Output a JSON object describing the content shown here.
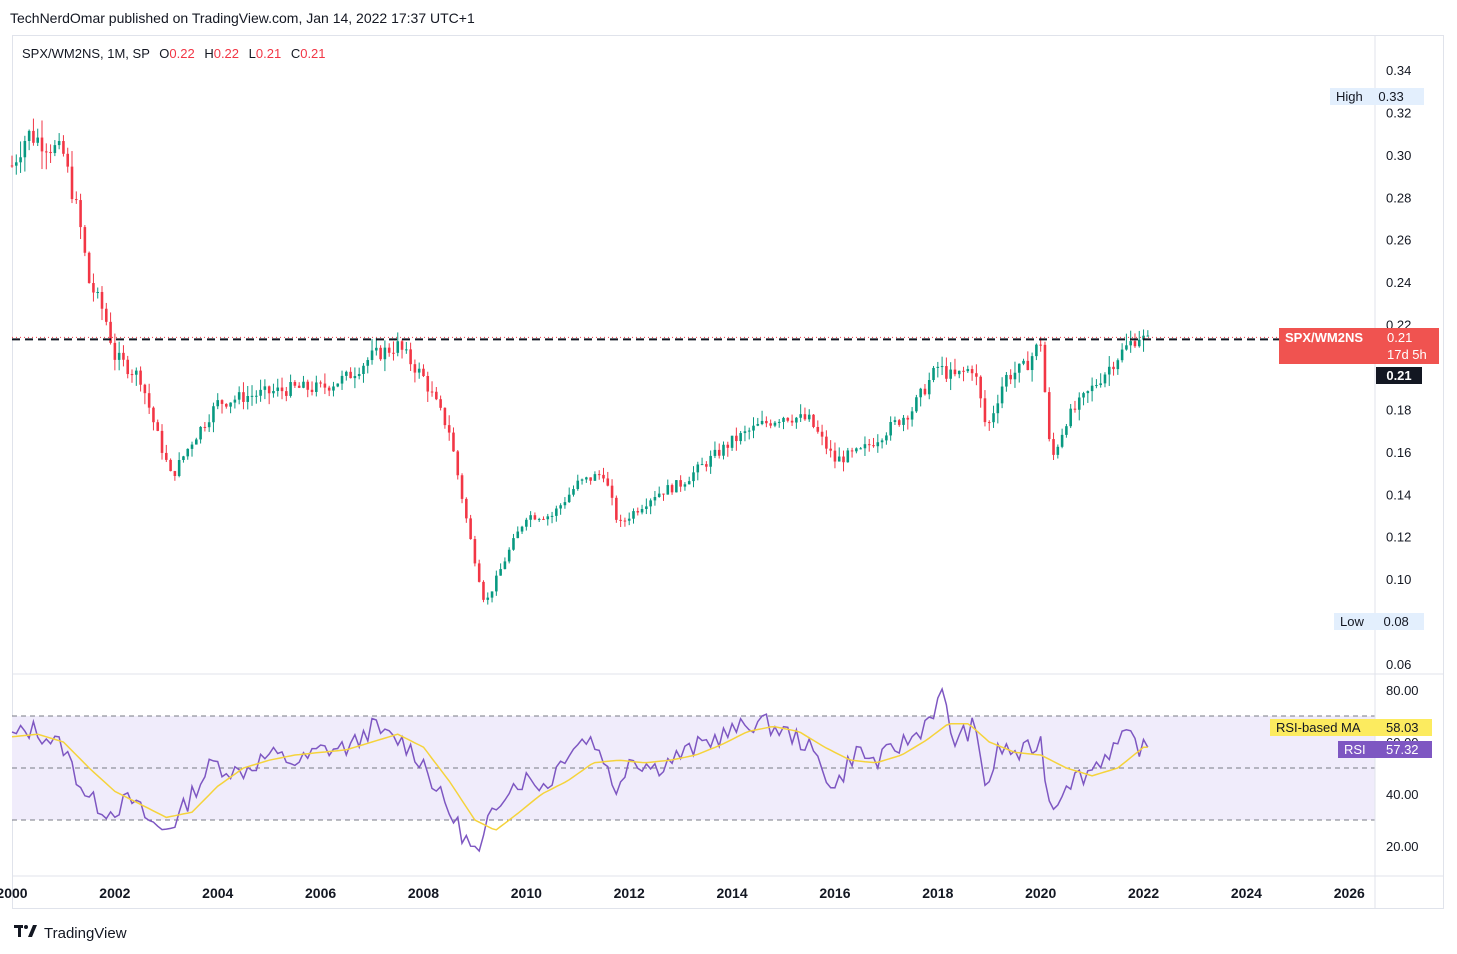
{
  "header": {
    "published_text": "TechNerdOmar published on TradingView.com, Jan 14, 2022 17:37 UTC+1"
  },
  "legend": {
    "symbol": "SPX/WM2NS, 1M, SP",
    "o_label": "O",
    "o_value": "0.22",
    "h_label": "H",
    "h_value": "0.22",
    "l_label": "L",
    "l_value": "0.21",
    "c_label": "C",
    "c_value": "0.21"
  },
  "tags": {
    "high_label": "High",
    "high_value": "0.33",
    "low_label": "Low",
    "low_value": "0.08",
    "symbol_label": "SPX/WM2NS",
    "symbol_value": "0.21",
    "countdown": "17d 5h",
    "crosshair_value": "0.21",
    "rsi_ma_label": "RSI-based MA",
    "rsi_ma_value": "58.03",
    "rsi_label": "RSI",
    "rsi_value": "57.32"
  },
  "footer": {
    "brand": "TradingView"
  },
  "colors": {
    "up": "#089981",
    "down": "#f23645",
    "rsi": "#7e57c2",
    "rsi_ma": "#f5d33b",
    "band": "#f0ecfb",
    "tag_red": "#f05350"
  },
  "chart_data": [
    {
      "type": "candlestick",
      "series_name": "SPX/WM2NS",
      "interval": "1M",
      "x_ticks": [
        "2000",
        "2002",
        "2004",
        "2006",
        "2008",
        "2010",
        "2012",
        "2014",
        "2016",
        "2018",
        "2020",
        "2022",
        "2024",
        "2026"
      ],
      "y_ticks": [
        "0.06",
        "0.08",
        "0.10",
        "0.12",
        "0.14",
        "0.16",
        "0.18",
        "0.20",
        "0.22",
        "0.24",
        "0.26",
        "0.28",
        "0.30",
        "0.32",
        "0.34"
      ],
      "ylim": [
        0.06,
        0.34
      ],
      "xlim": [
        2000.0,
        2026.5
      ],
      "high": 0.33,
      "low": 0.08,
      "horizontal_line": 0.213,
      "anchors": [
        [
          2000.0,
          0.295
        ],
        [
          2000.3,
          0.31
        ],
        [
          2000.7,
          0.305
        ],
        [
          2001.0,
          0.3
        ],
        [
          2001.3,
          0.27
        ],
        [
          2001.5,
          0.24
        ],
        [
          2001.8,
          0.225
        ],
        [
          2002.0,
          0.205
        ],
        [
          2002.5,
          0.195
        ],
        [
          2002.8,
          0.17
        ],
        [
          2003.1,
          0.148
        ],
        [
          2003.5,
          0.165
        ],
        [
          2004.0,
          0.183
        ],
        [
          2004.5,
          0.186
        ],
        [
          2005.0,
          0.188
        ],
        [
          2005.5,
          0.19
        ],
        [
          2006.0,
          0.19
        ],
        [
          2006.5,
          0.195
        ],
        [
          2007.0,
          0.205
        ],
        [
          2007.5,
          0.21
        ],
        [
          2008.0,
          0.195
        ],
        [
          2008.5,
          0.17
        ],
        [
          2008.9,
          0.12
        ],
        [
          2009.2,
          0.088
        ],
        [
          2009.6,
          0.11
        ],
        [
          2010.0,
          0.13
        ],
        [
          2010.5,
          0.13
        ],
        [
          2011.0,
          0.145
        ],
        [
          2011.5,
          0.15
        ],
        [
          2011.8,
          0.125
        ],
        [
          2012.0,
          0.13
        ],
        [
          2012.5,
          0.14
        ],
        [
          2013.0,
          0.145
        ],
        [
          2013.5,
          0.155
        ],
        [
          2014.0,
          0.165
        ],
        [
          2014.5,
          0.172
        ],
        [
          2015.0,
          0.177
        ],
        [
          2015.5,
          0.175
        ],
        [
          2016.0,
          0.156
        ],
        [
          2016.5,
          0.16
        ],
        [
          2017.0,
          0.17
        ],
        [
          2017.5,
          0.18
        ],
        [
          2018.0,
          0.2
        ],
        [
          2018.3,
          0.195
        ],
        [
          2018.7,
          0.2
        ],
        [
          2018.95,
          0.17
        ],
        [
          2019.3,
          0.195
        ],
        [
          2019.7,
          0.2
        ],
        [
          2020.0,
          0.212
        ],
        [
          2020.2,
          0.155
        ],
        [
          2020.5,
          0.175
        ],
        [
          2021.0,
          0.19
        ],
        [
          2021.5,
          0.205
        ],
        [
          2021.9,
          0.215
        ],
        [
          2022.05,
          0.212
        ]
      ]
    },
    {
      "type": "line",
      "series": [
        {
          "name": "RSI"
        },
        {
          "name": "RSI-based MA"
        }
      ],
      "y_ticks": [
        "20.00",
        "40.00",
        "60.00",
        "80.00"
      ],
      "ylim": [
        10,
        85
      ],
      "bands": [
        30,
        50,
        70
      ],
      "rsi_anchors": [
        [
          2000.0,
          62
        ],
        [
          2000.4,
          65
        ],
        [
          2001.0,
          58
        ],
        [
          2001.3,
          45
        ],
        [
          2001.5,
          38
        ],
        [
          2001.9,
          33
        ],
        [
          2002.3,
          38
        ],
        [
          2002.7,
          29
        ],
        [
          2002.9,
          26
        ],
        [
          2003.2,
          30
        ],
        [
          2003.5,
          40
        ],
        [
          2003.9,
          52
        ],
        [
          2004.4,
          48
        ],
        [
          2005.0,
          55
        ],
        [
          2005.6,
          52
        ],
        [
          2006.0,
          57
        ],
        [
          2006.6,
          58
        ],
        [
          2007.0,
          66
        ],
        [
          2007.3,
          62
        ],
        [
          2007.6,
          60
        ],
        [
          2008.0,
          52
        ],
        [
          2008.3,
          40
        ],
        [
          2008.6,
          30
        ],
        [
          2008.9,
          20
        ],
        [
          2009.1,
          16
        ],
        [
          2009.3,
          32
        ],
        [
          2009.6,
          42
        ],
        [
          2010.0,
          46
        ],
        [
          2010.4,
          43
        ],
        [
          2010.8,
          57
        ],
        [
          2011.2,
          62
        ],
        [
          2011.5,
          55
        ],
        [
          2011.7,
          40
        ],
        [
          2012.0,
          54
        ],
        [
          2012.5,
          50
        ],
        [
          2013.0,
          55
        ],
        [
          2013.5,
          60
        ],
        [
          2014.0,
          64
        ],
        [
          2014.5,
          68
        ],
        [
          2014.9,
          65
        ],
        [
          2015.4,
          60
        ],
        [
          2015.7,
          52
        ],
        [
          2016.0,
          42
        ],
        [
          2016.4,
          57
        ],
        [
          2016.8,
          52
        ],
        [
          2017.2,
          58
        ],
        [
          2017.6,
          63
        ],
        [
          2017.9,
          72
        ],
        [
          2018.1,
          78
        ],
        [
          2018.3,
          60
        ],
        [
          2018.7,
          66
        ],
        [
          2018.95,
          42
        ],
        [
          2019.2,
          58
        ],
        [
          2019.6,
          55
        ],
        [
          2020.0,
          60
        ],
        [
          2020.2,
          33
        ],
        [
          2020.5,
          45
        ],
        [
          2020.9,
          48
        ],
        [
          2021.3,
          56
        ],
        [
          2021.7,
          62
        ],
        [
          2022.0,
          57
        ]
      ],
      "ma_anchors": [
        [
          2000.0,
          62
        ],
        [
          2000.5,
          63
        ],
        [
          2001.0,
          60
        ],
        [
          2001.5,
          50
        ],
        [
          2002.0,
          41
        ],
        [
          2002.5,
          36
        ],
        [
          2003.0,
          31
        ],
        [
          2003.5,
          33
        ],
        [
          2004.0,
          43
        ],
        [
          2004.5,
          50
        ],
        [
          2005.0,
          53
        ],
        [
          2005.5,
          55
        ],
        [
          2006.0,
          56
        ],
        [
          2006.5,
          57
        ],
        [
          2007.0,
          60
        ],
        [
          2007.5,
          63
        ],
        [
          2008.0,
          58
        ],
        [
          2008.5,
          45
        ],
        [
          2009.0,
          30
        ],
        [
          2009.4,
          26
        ],
        [
          2009.8,
          32
        ],
        [
          2010.3,
          40
        ],
        [
          2010.8,
          45
        ],
        [
          2011.3,
          52
        ],
        [
          2011.8,
          53
        ],
        [
          2012.3,
          52
        ],
        [
          2012.8,
          53
        ],
        [
          2013.3,
          55
        ],
        [
          2013.8,
          59
        ],
        [
          2014.3,
          64
        ],
        [
          2014.8,
          66
        ],
        [
          2015.3,
          64
        ],
        [
          2015.8,
          58
        ],
        [
          2016.3,
          53
        ],
        [
          2016.8,
          52
        ],
        [
          2017.3,
          55
        ],
        [
          2017.8,
          61
        ],
        [
          2018.2,
          67
        ],
        [
          2018.6,
          67
        ],
        [
          2019.0,
          60
        ],
        [
          2019.5,
          56
        ],
        [
          2020.0,
          55
        ],
        [
          2020.5,
          50
        ],
        [
          2021.0,
          47
        ],
        [
          2021.5,
          50
        ],
        [
          2022.0,
          58
        ]
      ]
    }
  ]
}
